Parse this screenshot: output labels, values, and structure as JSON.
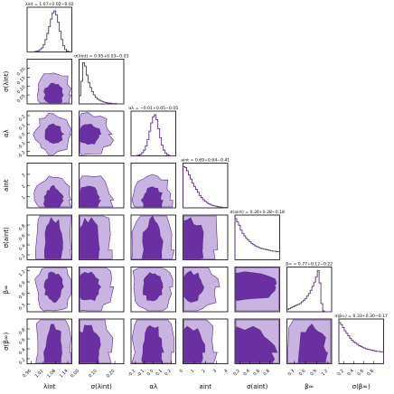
{
  "chart_data": {
    "type": "corner",
    "params": [
      {
        "label": "λ_int",
        "display": "λint",
        "min": 0.94,
        "max": 1.16,
        "ticks": [
          "0.96",
          "1.02",
          "1.08",
          "1.14"
        ],
        "tick_values": [
          0.96,
          1.02,
          1.08,
          1.14
        ],
        "title": "λint = 1.07+0.02−0.02",
        "median": 1.07,
        "plus": 0.02,
        "minus": 0.02,
        "hist": [
          0,
          0,
          0,
          0,
          1,
          2,
          3,
          6,
          10,
          18,
          30,
          45,
          62,
          80,
          95,
          100,
          90,
          72,
          50,
          30,
          15,
          6,
          2,
          1,
          0
        ]
      },
      {
        "label": "σ(λ_int)",
        "display": "σ(λint)",
        "min": 0.0,
        "max": 0.25,
        "ticks": [
          "0.05",
          "0.10",
          "0.15",
          "0.20"
        ],
        "tick_values": [
          0.05,
          0.1,
          0.15,
          0.2
        ],
        "tick_ticks_x": [
          "0.00",
          "0.10",
          "0.20"
        ],
        "tick_values_x": [
          0.0,
          0.1,
          0.2
        ],
        "title": "σ(λint) = 0.05+0.03−0.03",
        "median": 0.05,
        "plus": 0.03,
        "minus": 0.03,
        "hist": [
          20,
          55,
          100,
          92,
          70,
          52,
          40,
          30,
          22,
          16,
          12,
          9,
          7,
          5,
          4,
          3,
          2,
          2,
          1,
          1,
          1,
          0,
          0,
          0,
          0
        ]
      },
      {
        "label": "α_λ",
        "display": "αλ",
        "min": -0.25,
        "max": 0.25,
        "ticks": [
          "-0.2",
          "-0.1",
          "0.0",
          "0.1",
          "0.2"
        ],
        "tick_values": [
          -0.2,
          -0.1,
          0.0,
          0.1,
          0.2
        ],
        "title": "αλ = −0.01+0.05−0.05",
        "median": -0.01,
        "plus": 0.05,
        "minus": 0.05,
        "hist": [
          0,
          0,
          0,
          1,
          2,
          4,
          8,
          14,
          24,
          40,
          60,
          80,
          95,
          100,
          88,
          66,
          44,
          26,
          14,
          7,
          3,
          1,
          0,
          0,
          0
        ]
      },
      {
        "label": "a_int",
        "display": "aint",
        "min": 0.0,
        "max": 4.0,
        "ticks": [
          "1",
          "2",
          "3"
        ],
        "tick_values": [
          1,
          2,
          3
        ],
        "tick_ticks_x": [
          "0",
          "1",
          "2",
          "3",
          "4"
        ],
        "tick_values_x": [
          0,
          1,
          2,
          3,
          4
        ],
        "title": "aint = 0.69+0.64−0.41",
        "median": 0.69,
        "plus": 0.64,
        "minus": 0.41,
        "hist": [
          100,
          98,
          90,
          80,
          70,
          60,
          52,
          45,
          38,
          30,
          25,
          20,
          16,
          13,
          10,
          8,
          6,
          5,
          4,
          3,
          2,
          2,
          1,
          1,
          1
        ]
      },
      {
        "label": "σ(a_int)",
        "display": "σ(aint)",
        "min": 0.1,
        "max": 1.0,
        "ticks": [
          "0.2",
          "0.4",
          "0.6",
          "0.8"
        ],
        "tick_values": [
          0.2,
          0.4,
          0.6,
          0.8
        ],
        "title": "σ(aint) = 0.30+0.38−0.18",
        "median": 0.3,
        "plus": 0.38,
        "minus": 0.18,
        "hist": [
          100,
          92,
          84,
          72,
          64,
          58,
          52,
          48,
          44,
          40,
          37,
          34,
          32,
          30,
          28,
          27,
          26,
          25,
          24,
          23,
          22,
          21,
          21,
          20,
          20
        ]
      },
      {
        "label": "β_∞",
        "display": "β∞",
        "min": 0.1,
        "max": 1.3,
        "ticks": [
          "0.3",
          "0.6",
          "0.9",
          "1.2"
        ],
        "tick_values": [
          0.3,
          0.6,
          0.9,
          1.2
        ],
        "title": "β∞ = 0.77+0.12−0.22",
        "median": 0.77,
        "plus": 0.12,
        "minus": 0.22,
        "hist": [
          5,
          8,
          10,
          12,
          14,
          16,
          18,
          20,
          24,
          28,
          32,
          38,
          44,
          52,
          62,
          72,
          85,
          100,
          70,
          20,
          2,
          0,
          0,
          0,
          0
        ]
      },
      {
        "label": "σ(β_∞)",
        "display": "σ(β∞)",
        "min": 0.1,
        "max": 1.0,
        "ticks": [
          "0.2",
          "0.4",
          "0.6",
          "0.8"
        ],
        "tick_values": [
          0.2,
          0.4,
          0.6,
          0.8
        ],
        "title": "σ(β∞) = 0.33+0.30−0.17",
        "median": 0.33,
        "plus": 0.3,
        "minus": 0.17,
        "hist": [
          100,
          95,
          88,
          80,
          74,
          68,
          62,
          57,
          53,
          50,
          47,
          44,
          42,
          40,
          38,
          36,
          35,
          34,
          33,
          32,
          31,
          30,
          30,
          29,
          29
        ]
      }
    ],
    "legend": "none",
    "grid": false,
    "colors": {
      "line": "#5a2a8c",
      "dark": "#6a2fa0",
      "light": "#c9b3e0",
      "median": "#5a2a8c"
    }
  }
}
